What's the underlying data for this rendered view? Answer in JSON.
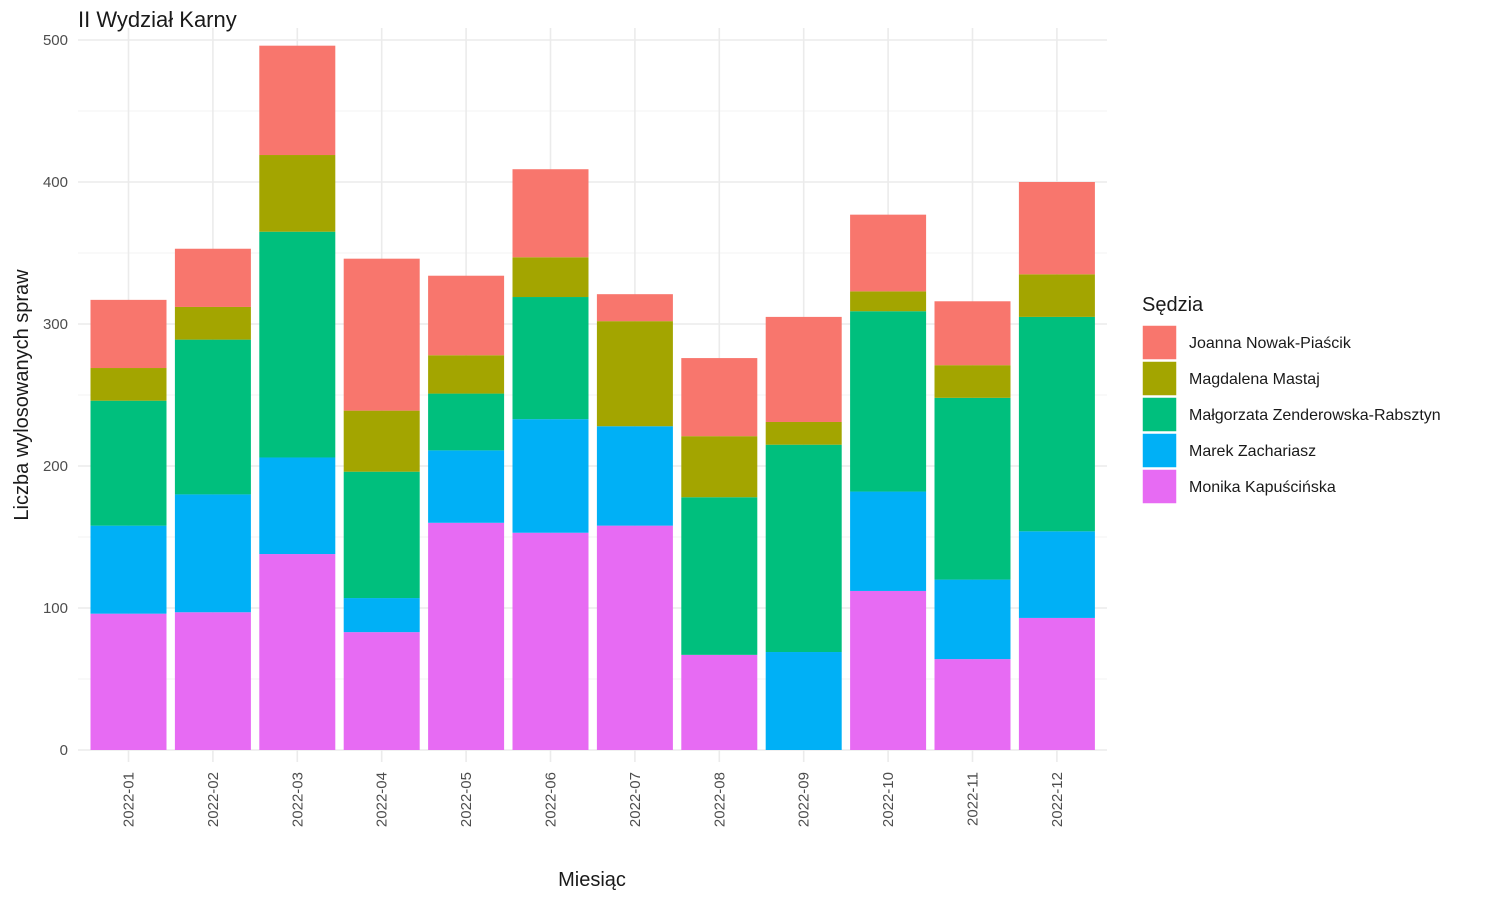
{
  "chart_data": {
    "type": "bar",
    "stacked": true,
    "title": "II Wydział Karny",
    "xlabel": "Miesiąc",
    "ylabel": "Liczba wylosowanych spraw",
    "ylim": [
      0,
      500
    ],
    "yticks": [
      0,
      100,
      200,
      300,
      400,
      500
    ],
    "grid": true,
    "legend_title": "Sędzia",
    "legend_position": "right",
    "categories": [
      "2022-01",
      "2022-02",
      "2022-03",
      "2022-04",
      "2022-05",
      "2022-06",
      "2022-07",
      "2022-08",
      "2022-09",
      "2022-10",
      "2022-11",
      "2022-12"
    ],
    "series": [
      {
        "name": "Joanna Nowak-Piaścik",
        "color": "#F8766D",
        "values": [
          48,
          41,
          77,
          107,
          56,
          62,
          19,
          55,
          74,
          54,
          45,
          65
        ]
      },
      {
        "name": "Magdalena Mastaj",
        "color": "#A3A500",
        "values": [
          23,
          23,
          54,
          43,
          27,
          28,
          74,
          43,
          16,
          14,
          23,
          30
        ]
      },
      {
        "name": "Małgorzata Zenderowska-Rabsztyn",
        "color": "#00BF7D",
        "values": [
          88,
          109,
          159,
          89,
          40,
          86,
          0,
          111,
          146,
          127,
          128,
          151
        ]
      },
      {
        "name": "Marek Zachariasz",
        "color": "#00B0F6",
        "values": [
          62,
          83,
          68,
          24,
          51,
          80,
          70,
          0,
          69,
          70,
          56,
          61
        ]
      },
      {
        "name": "Monika Kapuścińska",
        "color": "#E76BF3",
        "values": [
          96,
          97,
          138,
          83,
          160,
          153,
          158,
          67,
          0,
          112,
          64,
          93
        ]
      }
    ]
  }
}
